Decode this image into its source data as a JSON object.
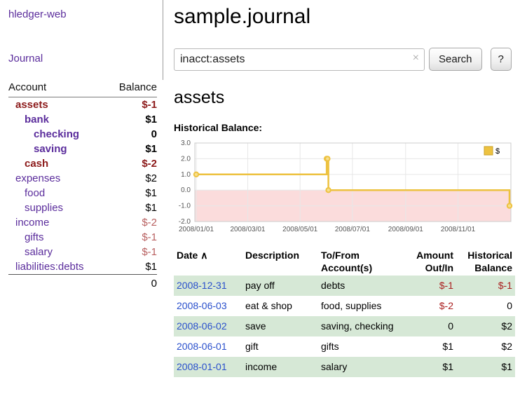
{
  "app": {
    "brand": "hledger-web",
    "nav_journal": "Journal"
  },
  "header": {
    "title": "sample.journal"
  },
  "search": {
    "value": "inacct:assets",
    "clear_icon": "×",
    "button": "Search",
    "help_button": "?"
  },
  "main": {
    "section_title": "assets",
    "chart_label": "Historical Balance:"
  },
  "sidebar": {
    "table": {
      "col_account": "Account",
      "col_balance": "Balance",
      "total": "0"
    },
    "accounts": [
      {
        "name": "assets",
        "balance": "$-1",
        "depth": 0,
        "bold": true,
        "name_tone": "negative",
        "balance_tone": "negative"
      },
      {
        "name": "bank",
        "balance": "$1",
        "depth": 1,
        "bold": true
      },
      {
        "name": "checking",
        "balance": "0",
        "depth": 2,
        "bold": true
      },
      {
        "name": "saving",
        "balance": "$1",
        "depth": 2,
        "bold": true
      },
      {
        "name": "cash",
        "balance": "$-2",
        "depth": 1,
        "bold": true,
        "name_tone": "negative",
        "balance_tone": "negative"
      },
      {
        "name": "expenses",
        "balance": "$2",
        "depth": 0,
        "bold": false
      },
      {
        "name": "food",
        "balance": "$1",
        "depth": 1,
        "bold": false
      },
      {
        "name": "supplies",
        "balance": "$1",
        "depth": 1,
        "bold": false
      },
      {
        "name": "income",
        "balance": "$-2",
        "depth": 0,
        "bold": false,
        "balance_tone": "negative-light"
      },
      {
        "name": "gifts",
        "balance": "$-1",
        "depth": 1,
        "bold": false,
        "balance_tone": "negative-light"
      },
      {
        "name": "salary",
        "balance": "$-1",
        "depth": 1,
        "bold": false,
        "balance_tone": "negative-light"
      },
      {
        "name": "liabilities:debts",
        "balance": "$1",
        "depth": 0,
        "bold": false
      }
    ]
  },
  "chart_data": {
    "type": "line",
    "title": "Historical Balance",
    "step": true,
    "series": [
      {
        "name": "$",
        "color": "#EDC240",
        "points": [
          [
            "2008-01-01",
            1
          ],
          [
            "2008-06-01",
            2
          ],
          [
            "2008-06-02",
            2
          ],
          [
            "2008-06-03",
            0
          ],
          [
            "2008-12-31",
            -1
          ]
        ]
      }
    ],
    "x_range": [
      "2008-01-01",
      "2008-12-31"
    ],
    "x_ticks": [
      "2008-01-01",
      "2008-03-01",
      "2008-05-01",
      "2008-07-01",
      "2008-09-01",
      "2008-11-01"
    ],
    "ylim": [
      -2,
      3
    ],
    "y_ticks": [
      3,
      2,
      1,
      0,
      -1,
      -2
    ],
    "grid": true,
    "legend_position": "top-right",
    "negative_region_color": "#fbdcdc",
    "marker_fill": "#f8df8f",
    "legend_border": "#c9a227"
  },
  "register": {
    "headers": {
      "date": "Date",
      "sort_indicator": "∧",
      "description": "Description",
      "tofrom": "To/From Account(s)",
      "amount": "Amount Out/In",
      "balance": "Historical Balance"
    },
    "rows": [
      {
        "date": "2008-12-31",
        "description": "pay off",
        "accounts": "debts",
        "amount": "$-1",
        "balance": "$-1",
        "amount_neg": true,
        "balance_neg": true,
        "shaded": true
      },
      {
        "date": "2008-06-03",
        "description": "eat & shop",
        "accounts": "food, supplies",
        "amount": "$-2",
        "balance": "0",
        "amount_neg": true,
        "balance_neg": false,
        "shaded": false
      },
      {
        "date": "2008-06-02",
        "description": "save",
        "accounts": "saving, checking",
        "amount": "0",
        "balance": "$2",
        "amount_neg": false,
        "balance_neg": false,
        "shaded": true
      },
      {
        "date": "2008-06-01",
        "description": "gift",
        "accounts": "gifts",
        "amount": "$1",
        "balance": "$2",
        "amount_neg": false,
        "balance_neg": false,
        "shaded": false
      },
      {
        "date": "2008-01-01",
        "description": "income",
        "accounts": "salary",
        "amount": "$1",
        "balance": "$1",
        "amount_neg": false,
        "balance_neg": false,
        "shaded": true
      }
    ]
  },
  "colors": {
    "link_purple": "#5b2d9c",
    "link_blue": "#2a50cc",
    "negative_dark": "#8c1a1a",
    "negative_light": "#b86060",
    "negative_table": "#aa2020",
    "row_shade_green": "#d6e8d6",
    "chart_line": "#EDC240"
  }
}
